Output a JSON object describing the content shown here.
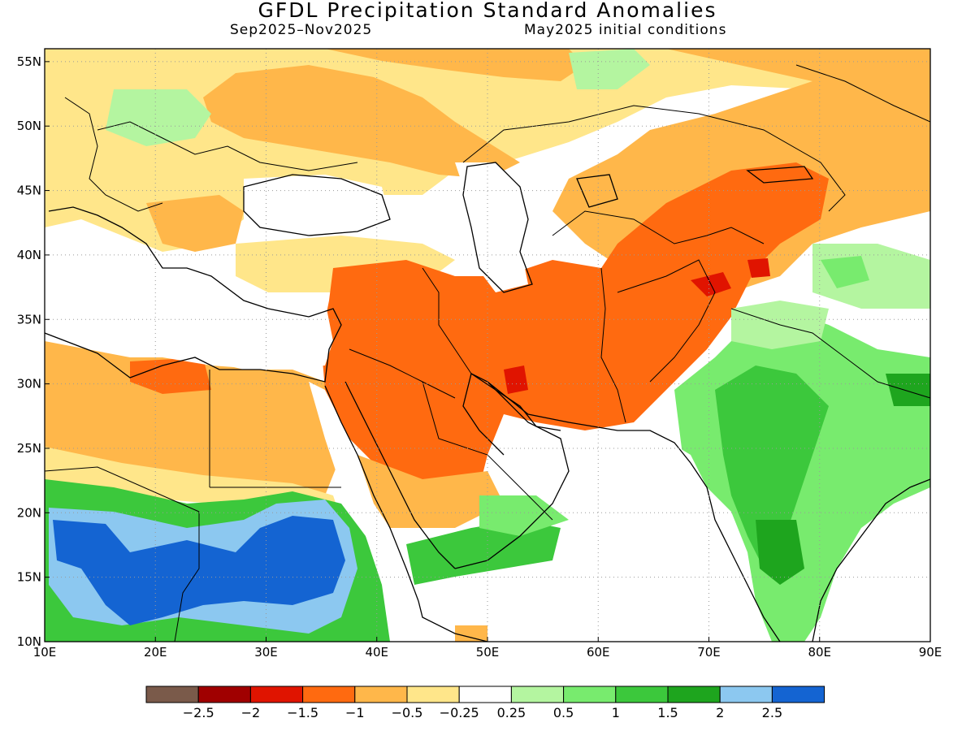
{
  "title": "GFDL Precipitation Standard Anomalies",
  "subtitle_left": "Sep2025–Nov2025",
  "subtitle_right": "May2025 initial conditions",
  "map": {
    "lon_range": [
      10,
      90
    ],
    "lat_range": [
      10,
      56
    ],
    "lon_ticks": [
      10,
      20,
      30,
      40,
      50,
      60,
      70,
      80,
      90
    ],
    "lon_tick_labels": [
      "10E",
      "20E",
      "30E",
      "40E",
      "50E",
      "60E",
      "70E",
      "80E",
      "90E"
    ],
    "lat_ticks": [
      10,
      15,
      20,
      25,
      30,
      35,
      40,
      45,
      50,
      55
    ],
    "lat_tick_labels": [
      "10N",
      "15N",
      "20N",
      "25N",
      "30N",
      "35N",
      "40N",
      "45N",
      "50N",
      "55N"
    ],
    "gridlines": "dotted"
  },
  "colorbar": {
    "colors": [
      "#7a5a4a",
      "#a00000",
      "#e01400",
      "#ff6a10",
      "#ffb74a",
      "#ffe68a",
      "#ffffff",
      "#b4f5a0",
      "#78eb6e",
      "#3cc83c",
      "#1ea51e",
      "#8cc8f0",
      "#1464d2"
    ],
    "labels": [
      "−2.5",
      "−2",
      "−1.5",
      "−1",
      "−0.5",
      "−0.25",
      "0.25",
      "0.5",
      "1",
      "1.5",
      "2",
      "2.5"
    ]
  }
}
